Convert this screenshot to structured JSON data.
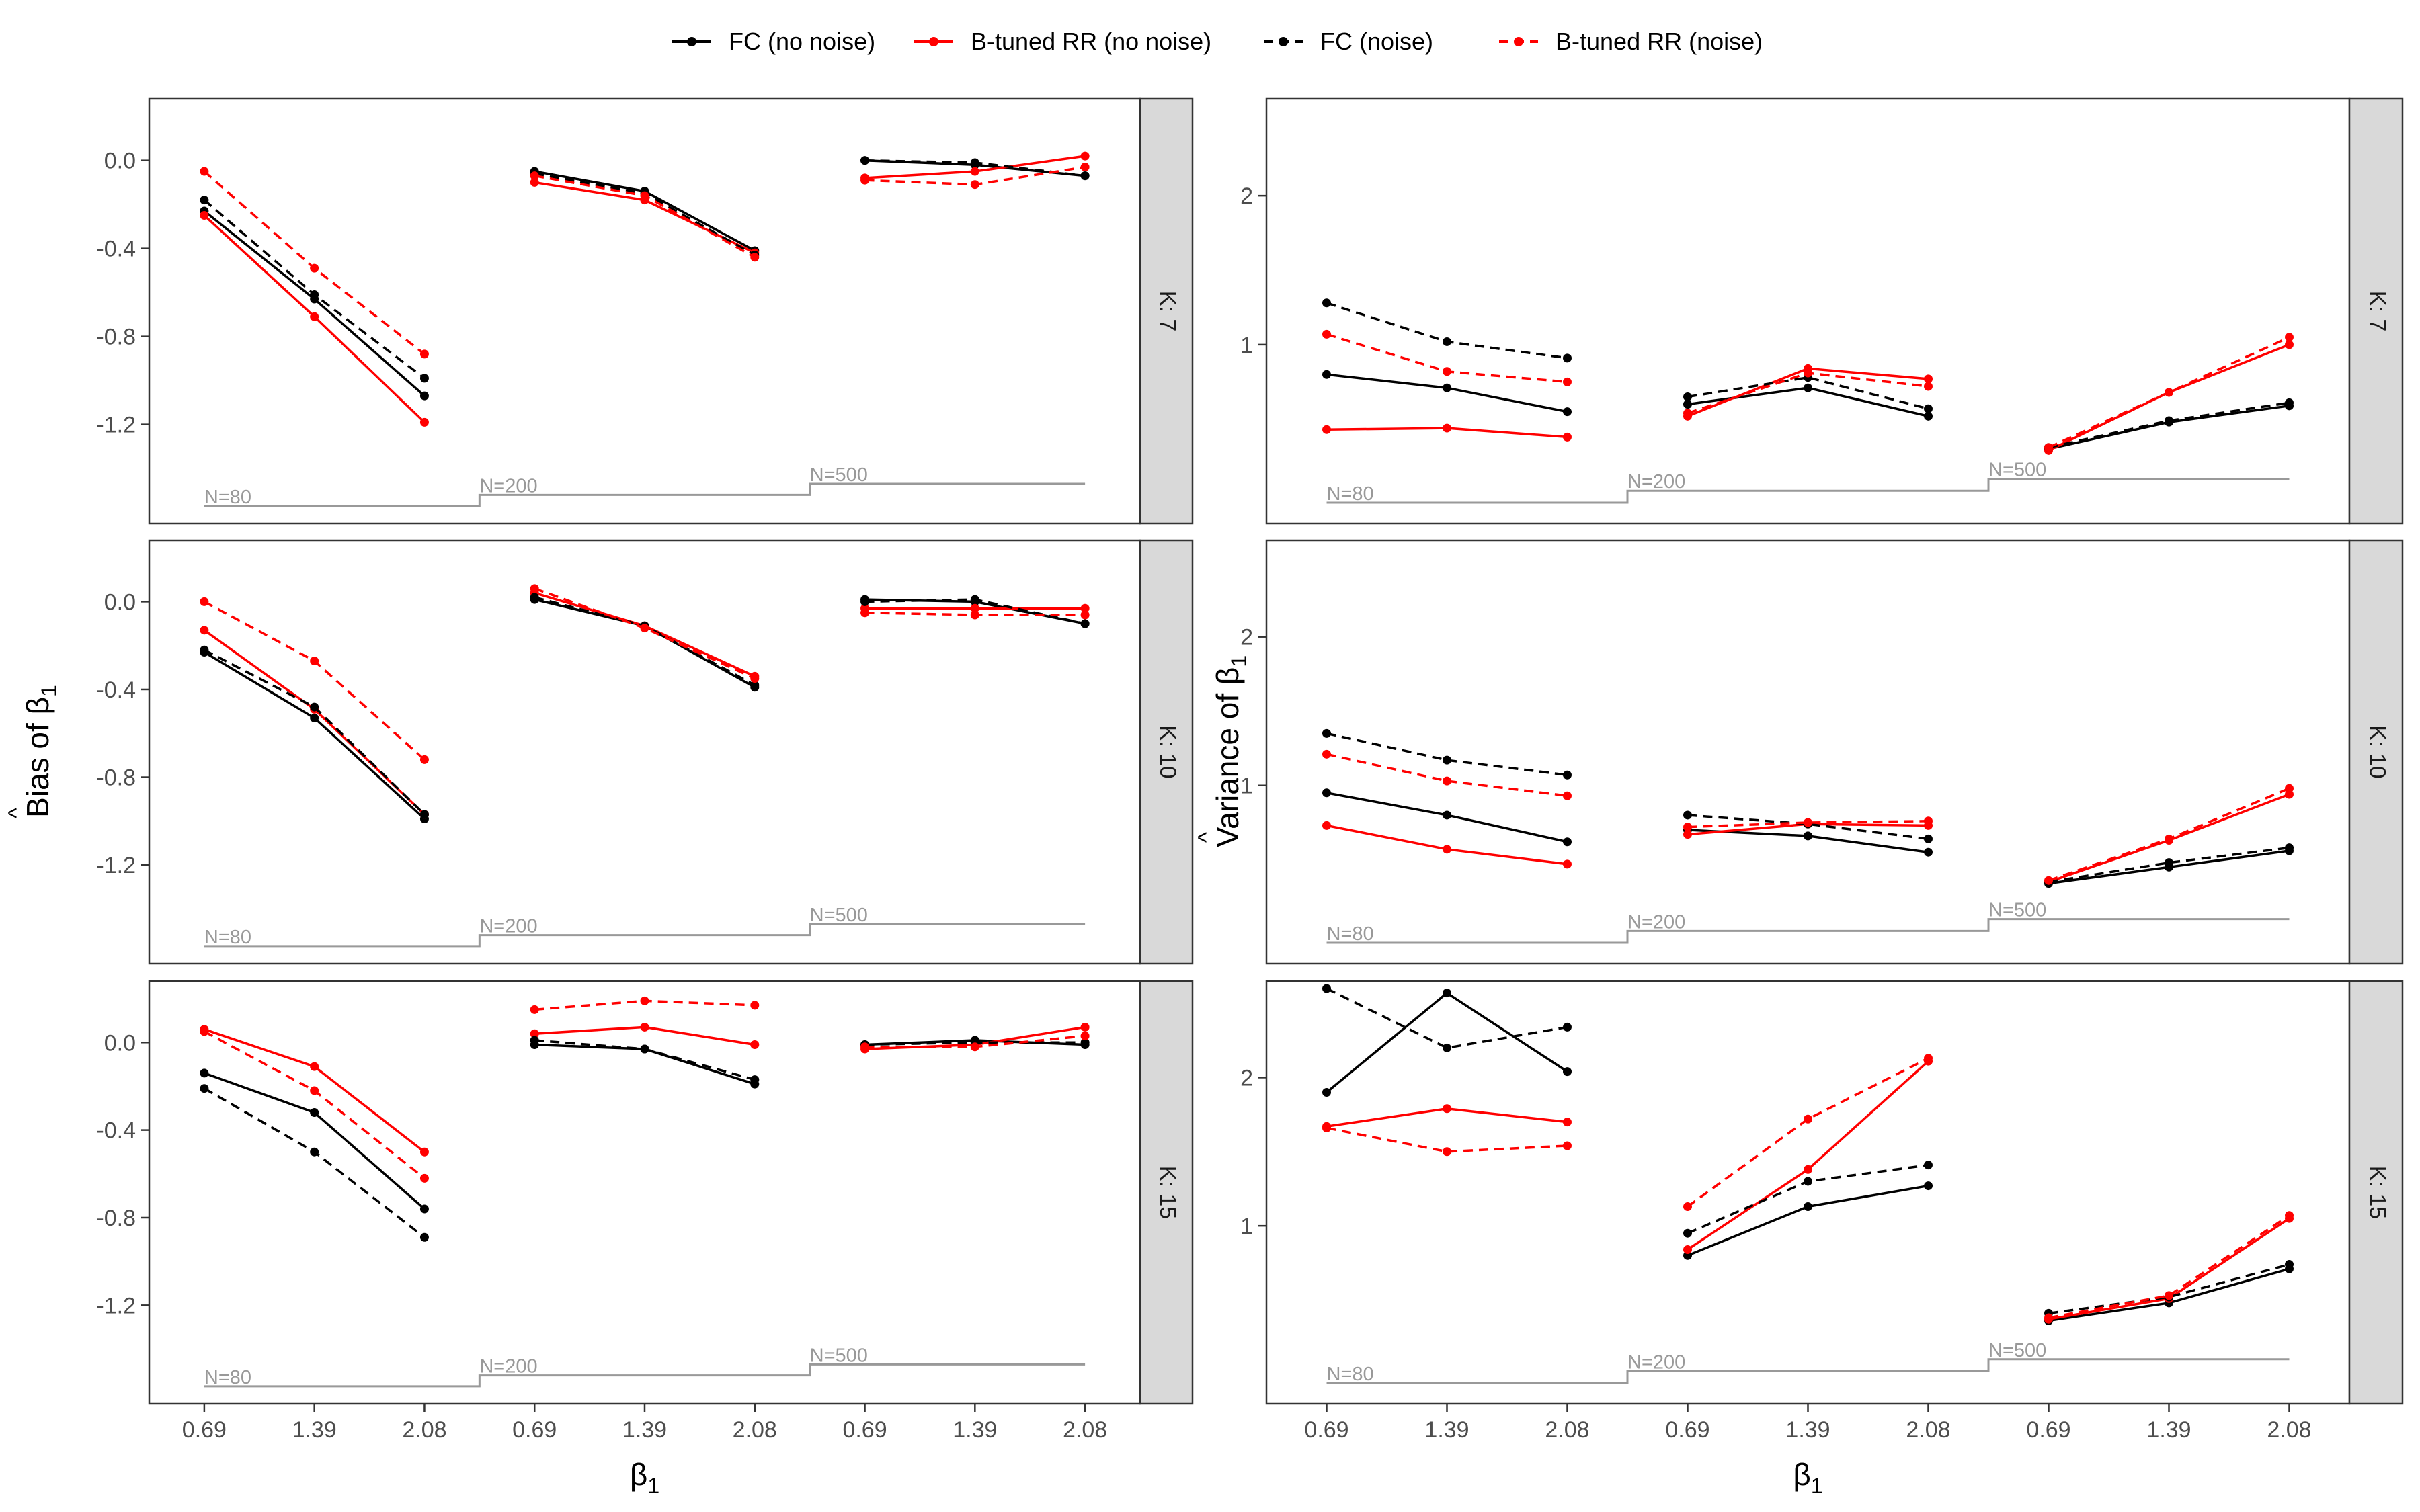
{
  "chart_data": {
    "type": "line",
    "legend": {
      "position": "top",
      "entries": [
        {
          "key": "fc_nonoise",
          "label": "FC (no noise)",
          "color": "#000000",
          "dashed": false
        },
        {
          "key": "rr_nonoise",
          "label": "B-tuned RR (no noise)",
          "color": "#ff0000",
          "dashed": false
        },
        {
          "key": "fc_noise",
          "label": "FC (noise)",
          "color": "#000000",
          "dashed": true
        },
        {
          "key": "rr_noise",
          "label": "B-tuned RR (noise)",
          "color": "#ff0000",
          "dashed": true
        }
      ]
    },
    "x_title_main": "β",
    "x_title_sub": "1",
    "x_tick_labels": [
      "0.69",
      "1.39",
      "2.08",
      "0.69",
      "1.39",
      "2.08",
      "0.69",
      "1.39",
      "2.08"
    ],
    "n_group_labels": [
      "N=80",
      "N=200",
      "N=500"
    ],
    "strip_labels": [
      "K: 7",
      "K: 10",
      "K: 15"
    ],
    "reference_color": "#999999",
    "columns": [
      {
        "y_title_main": "Bias of",
        "y_title_sub": "1",
        "ylim": [
          -1.65,
          0.28
        ],
        "y_ticks": [
          0.0,
          -0.4,
          -0.8,
          -1.2
        ],
        "y_tick_labels": [
          "0.0",
          "-0.4",
          "-0.8",
          "-1.2"
        ],
        "ref_levels": [
          -1.57,
          -1.52,
          -1.47
        ],
        "panels": [
          {
            "k": 7,
            "series": {
              "fc_nonoise": [
                -0.23,
                -0.63,
                -1.07,
                -0.05,
                -0.14,
                -0.41,
                0.0,
                -0.02,
                -0.07
              ],
              "rr_nonoise": [
                -0.25,
                -0.71,
                -1.19,
                -0.1,
                -0.18,
                -0.42,
                -0.08,
                -0.05,
                0.02
              ],
              "fc_noise": [
                -0.18,
                -0.61,
                -0.99,
                -0.06,
                -0.15,
                -0.43,
                0.0,
                -0.01,
                -0.07
              ],
              "rr_noise": [
                -0.05,
                -0.49,
                -0.88,
                -0.07,
                -0.16,
                -0.44,
                -0.09,
                -0.11,
                -0.03
              ]
            }
          },
          {
            "k": 10,
            "series": {
              "fc_nonoise": [
                -0.23,
                -0.53,
                -0.99,
                0.01,
                -0.11,
                -0.39,
                0.01,
                0.0,
                -0.1
              ],
              "rr_nonoise": [
                -0.13,
                -0.49,
                -0.97,
                0.04,
                -0.11,
                -0.34,
                -0.03,
                -0.03,
                -0.03
              ],
              "fc_noise": [
                -0.22,
                -0.48,
                -0.97,
                0.02,
                -0.11,
                -0.38,
                0.0,
                0.01,
                -0.1
              ],
              "rr_noise": [
                0.0,
                -0.27,
                -0.72,
                0.06,
                -0.12,
                -0.35,
                -0.05,
                -0.06,
                -0.06
              ]
            }
          },
          {
            "k": 15,
            "series": {
              "fc_nonoise": [
                -0.14,
                -0.32,
                -0.76,
                -0.01,
                -0.03,
                -0.19,
                -0.01,
                0.01,
                -0.01
              ],
              "rr_nonoise": [
                0.06,
                -0.11,
                -0.5,
                0.04,
                0.07,
                -0.01,
                -0.03,
                -0.01,
                0.07
              ],
              "fc_noise": [
                -0.21,
                -0.5,
                -0.89,
                0.01,
                -0.03,
                -0.17,
                -0.01,
                0.0,
                0.0
              ],
              "rr_noise": [
                0.05,
                -0.22,
                -0.62,
                0.15,
                0.19,
                0.17,
                -0.02,
                -0.02,
                0.03
              ]
            }
          }
        ]
      },
      {
        "y_title_main": "Variance of",
        "y_title_sub": "1",
        "ylim": [
          -0.2,
          2.65
        ],
        "y_ticks": [
          2,
          1
        ],
        "y_tick_labels": [
          "2",
          "1"
        ],
        "ref_levels": [
          -0.06,
          0.02,
          0.1
        ],
        "panels": [
          {
            "k": 7,
            "series": {
              "fc_nonoise": [
                0.8,
                0.71,
                0.55,
                0.6,
                0.71,
                0.52,
                0.3,
                0.48,
                0.59
              ],
              "rr_nonoise": [
                0.43,
                0.44,
                0.38,
                0.52,
                0.84,
                0.77,
                0.29,
                0.68,
                1.0
              ],
              "fc_noise": [
                1.28,
                1.02,
                0.91,
                0.65,
                0.78,
                0.57,
                0.31,
                0.49,
                0.61
              ],
              "rr_noise": [
                1.07,
                0.82,
                0.75,
                0.54,
                0.81,
                0.72,
                0.31,
                0.68,
                1.05
              ]
            }
          },
          {
            "k": 10,
            "series": {
              "fc_nonoise": [
                0.95,
                0.8,
                0.62,
                0.7,
                0.66,
                0.55,
                0.34,
                0.45,
                0.56
              ],
              "rr_nonoise": [
                0.73,
                0.57,
                0.47,
                0.67,
                0.74,
                0.73,
                0.35,
                0.63,
                0.94
              ],
              "fc_noise": [
                1.35,
                1.17,
                1.07,
                0.8,
                0.74,
                0.64,
                0.35,
                0.48,
                0.58
              ],
              "rr_noise": [
                1.21,
                1.03,
                0.93,
                0.72,
                0.75,
                0.76,
                0.36,
                0.64,
                0.98
              ]
            }
          },
          {
            "k": 15,
            "series": {
              "fc_nonoise": [
                1.9,
                2.57,
                2.04,
                0.8,
                1.13,
                1.27,
                0.36,
                0.48,
                0.71
              ],
              "rr_nonoise": [
                1.67,
                1.79,
                1.7,
                0.84,
                1.38,
                2.11,
                0.37,
                0.51,
                1.05
              ],
              "fc_noise": [
                2.6,
                2.2,
                2.34,
                0.95,
                1.3,
                1.41,
                0.41,
                0.52,
                0.74
              ],
              "rr_noise": [
                1.66,
                1.5,
                1.54,
                1.13,
                1.72,
                2.13,
                0.38,
                0.53,
                1.07
              ]
            }
          }
        ]
      }
    ]
  }
}
